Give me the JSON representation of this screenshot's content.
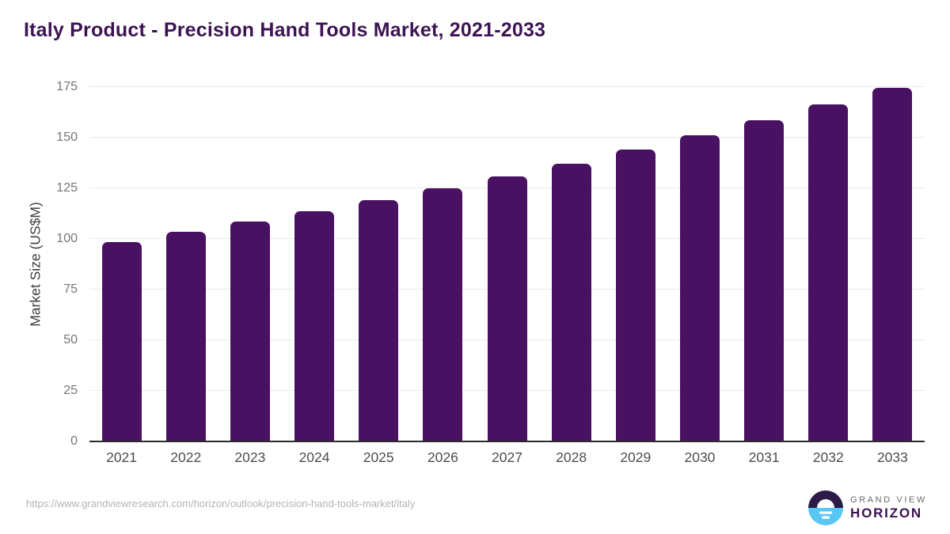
{
  "title": "Italy Product - Precision Hand Tools Market, 2021-2033",
  "footer": {
    "source_url": "https://www.grandviewresearch.com/horizon/outlook/precision-hand-tools-market/italy",
    "brand_line1": "GRAND VIEW",
    "brand_line2": "HORIZON"
  },
  "colors": {
    "bar": "#491161",
    "title_text": "#3c1353",
    "gridline": "#e9e9e9",
    "axis_line": "#2b2b2b",
    "tick_text": "#767676",
    "x_tick_text": "#4d4d4d",
    "url_text": "#b4b4b4",
    "logo_navy": "#2d1b47",
    "logo_blue": "#58c7f3",
    "brand_purple": "#3b1053"
  },
  "chart_data": {
    "type": "bar",
    "categories": [
      "2021",
      "2022",
      "2023",
      "2024",
      "2025",
      "2026",
      "2027",
      "2028",
      "2029",
      "2030",
      "2031",
      "2032",
      "2033"
    ],
    "values": [
      98.4,
      103.5,
      108.5,
      113.8,
      119.2,
      125.0,
      131.0,
      137.2,
      144.0,
      151.0,
      158.5,
      166.3,
      174.5
    ],
    "title": "Italy Product - Precision Hand Tools Market, 2021-2033",
    "xlabel": "",
    "ylabel": "Market Size (US$M)",
    "ylim": [
      0,
      175
    ],
    "yticks": [
      0,
      25,
      50,
      75,
      100,
      125,
      150,
      175
    ],
    "grid": true,
    "legend": false,
    "bar_color": "#491161"
  }
}
